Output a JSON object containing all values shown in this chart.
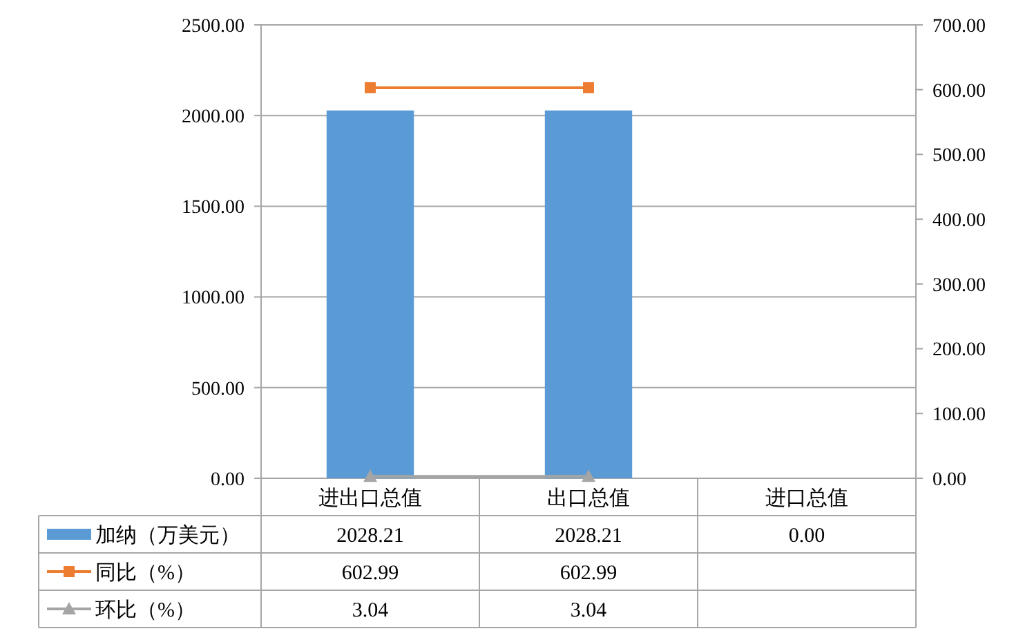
{
  "chart_data": {
    "type": "bar",
    "categories": [
      "进出口总值",
      "出口总值",
      "进口总值"
    ],
    "series": [
      {
        "name": "加纳（万美元）",
        "color": "#5b9bd5",
        "values": [
          2028.21,
          2028.21,
          0
        ],
        "value_labels": [
          "2028.21",
          "2028.21",
          "0.00"
        ]
      },
      {
        "name": "同比（%）",
        "type": "line",
        "axis": "y2",
        "marker": "square",
        "color": "#ed7d31",
        "values": [
          602.99,
          602.99,
          null
        ],
        "value_labels": [
          "602.99",
          "602.99",
          null
        ]
      },
      {
        "name": "环比（%）",
        "type": "line",
        "axis": "y2",
        "marker": "triangle",
        "color": "#a5a5a5",
        "values": [
          3.04,
          3.04,
          null
        ],
        "value_labels": [
          "3.04",
          "3.04",
          null
        ]
      }
    ],
    "ylim": [
      0,
      2500
    ],
    "yticks": [
      {
        "value": 0,
        "label": "0.00"
      },
      {
        "value": 500,
        "label": "500.00"
      },
      {
        "value": 1000,
        "label": "1000.00"
      },
      {
        "value": 1500,
        "label": "1500.00"
      },
      {
        "value": 2000,
        "label": "2000.00"
      },
      {
        "value": 2500,
        "label": "2500.00"
      }
    ],
    "y2lim": [
      0,
      700
    ],
    "y2ticks": [
      {
        "value": 0,
        "label": "0.00"
      },
      {
        "value": 100,
        "label": "100.00"
      },
      {
        "value": 200,
        "label": "200.00"
      },
      {
        "value": 300,
        "label": "300.00"
      },
      {
        "value": 400,
        "label": "400.00"
      },
      {
        "value": 500,
        "label": "500.00"
      },
      {
        "value": 600,
        "label": "600.00"
      },
      {
        "value": 700,
        "label": "700.00"
      }
    ],
    "grid": "y",
    "legend": "bottom"
  }
}
